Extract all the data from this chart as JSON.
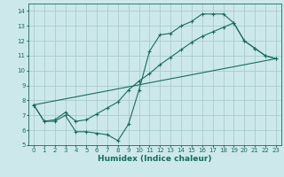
{
  "xlabel": "Humidex (Indice chaleur)",
  "ylabel": "",
  "bg_color": "#cce8ea",
  "grid_color": "#aacccc",
  "line_color": "#1a6b60",
  "xlim": [
    -0.5,
    23.5
  ],
  "ylim": [
    5,
    14.5
  ],
  "xticks": [
    0,
    1,
    2,
    3,
    4,
    5,
    6,
    7,
    8,
    9,
    10,
    11,
    12,
    13,
    14,
    15,
    16,
    17,
    18,
    19,
    20,
    21,
    22,
    23
  ],
  "yticks": [
    5,
    6,
    7,
    8,
    9,
    10,
    11,
    12,
    13,
    14
  ],
  "line1_x": [
    0,
    1,
    2,
    3,
    4,
    5,
    6,
    7,
    8,
    9,
    10,
    11,
    12,
    13,
    14,
    15,
    16,
    17,
    18,
    19,
    20,
    21,
    22,
    23
  ],
  "line1_y": [
    7.7,
    6.6,
    6.6,
    7.0,
    5.9,
    5.9,
    5.8,
    5.7,
    5.3,
    6.4,
    8.7,
    11.3,
    12.4,
    12.5,
    13.0,
    13.3,
    13.8,
    13.8,
    13.8,
    13.2,
    12.0,
    11.5,
    11.0,
    10.8
  ],
  "line2_x": [
    0,
    1,
    2,
    3,
    4,
    5,
    6,
    7,
    8,
    9,
    10,
    11,
    12,
    13,
    14,
    15,
    16,
    17,
    18,
    19,
    20,
    21,
    22,
    23
  ],
  "line2_y": [
    7.7,
    6.6,
    6.7,
    7.2,
    6.6,
    6.7,
    7.1,
    7.5,
    7.9,
    8.7,
    9.3,
    9.8,
    10.4,
    10.9,
    11.4,
    11.9,
    12.3,
    12.6,
    12.9,
    13.2,
    12.0,
    11.5,
    11.0,
    10.8
  ],
  "line3_x": [
    0,
    23
  ],
  "line3_y": [
    7.7,
    10.8
  ]
}
